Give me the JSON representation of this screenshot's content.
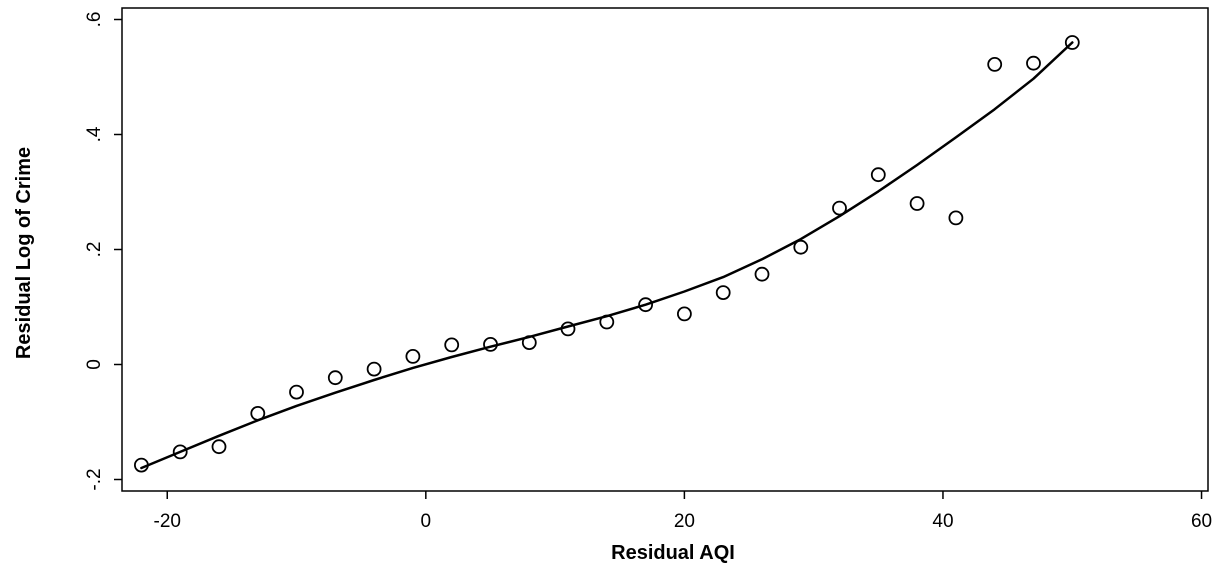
{
  "chart_data": {
    "type": "scatter",
    "title": "",
    "xlabel": "Residual AQI",
    "ylabel": "Residual Log of Crime",
    "xlim": [
      -23.5,
      60.5
    ],
    "ylim": [
      -0.22,
      0.62
    ],
    "x_ticks": [
      {
        "value": -20,
        "label": "-20"
      },
      {
        "value": 0,
        "label": "0"
      },
      {
        "value": 20,
        "label": "20"
      },
      {
        "value": 40,
        "label": "40"
      },
      {
        "value": 60,
        "label": "60"
      }
    ],
    "y_ticks": [
      {
        "value": -0.2,
        "label": "-.2"
      },
      {
        "value": 0,
        "label": "0"
      },
      {
        "value": 0.2,
        "label": ".2"
      },
      {
        "value": 0.4,
        "label": ".4"
      },
      {
        "value": 0.6,
        "label": ".6"
      }
    ],
    "grid": false,
    "legend": "none",
    "series": [
      {
        "kind": "scatter",
        "marker": "hollow-circle",
        "color": "#000000",
        "x": [
          -22,
          -19,
          -16,
          -13,
          -10,
          -7,
          -4,
          -1,
          2,
          5,
          8,
          11,
          14,
          17,
          20,
          23,
          26,
          29,
          32,
          35,
          38,
          41,
          44,
          47,
          50
        ],
        "y": [
          -0.175,
          -0.152,
          -0.143,
          -0.085,
          -0.048,
          -0.023,
          -0.008,
          0.014,
          0.034,
          0.035,
          0.038,
          0.062,
          0.074,
          0.104,
          0.088,
          0.125,
          0.157,
          0.204,
          0.272,
          0.33,
          0.28,
          0.255,
          0.522,
          0.524,
          0.56
        ]
      },
      {
        "kind": "line",
        "color": "#000000",
        "x": [
          -22,
          -19,
          -16,
          -13,
          -10,
          -7,
          -4,
          -1,
          2,
          5,
          8,
          11,
          14,
          17,
          20,
          23,
          26,
          29,
          32,
          35,
          38,
          41,
          44,
          47,
          50
        ],
        "y": [
          -0.18,
          -0.152,
          -0.124,
          -0.097,
          -0.072,
          -0.049,
          -0.027,
          -0.006,
          0.013,
          0.031,
          0.048,
          0.066,
          0.084,
          0.104,
          0.127,
          0.152,
          0.183,
          0.218,
          0.258,
          0.301,
          0.347,
          0.395,
          0.444,
          0.497,
          0.56
        ]
      }
    ]
  }
}
